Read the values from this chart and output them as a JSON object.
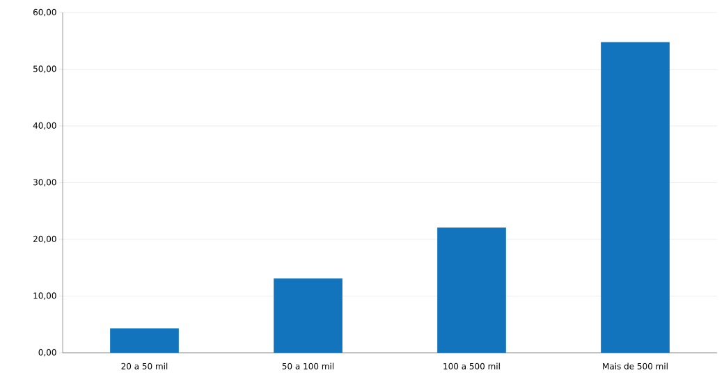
{
  "chart_data": {
    "type": "bar",
    "categories": [
      "20 a 50 mil",
      "50 a 100 mil",
      "100 a 500 mil",
      "Mais de 500 mil"
    ],
    "values": [
      4.3,
      13.1,
      22.1,
      54.8
    ],
    "color": "#1174bc",
    "ylim": [
      0,
      60
    ],
    "yticks": [
      {
        "value": 0,
        "label": "0,00"
      },
      {
        "value": 10,
        "label": "10,00"
      },
      {
        "value": 20,
        "label": "20,00"
      },
      {
        "value": 30,
        "label": "30,00"
      },
      {
        "value": 40,
        "label": "40,00"
      },
      {
        "value": 50,
        "label": "50,00"
      },
      {
        "value": 60,
        "label": "60,00"
      }
    ],
    "grid": "y"
  }
}
